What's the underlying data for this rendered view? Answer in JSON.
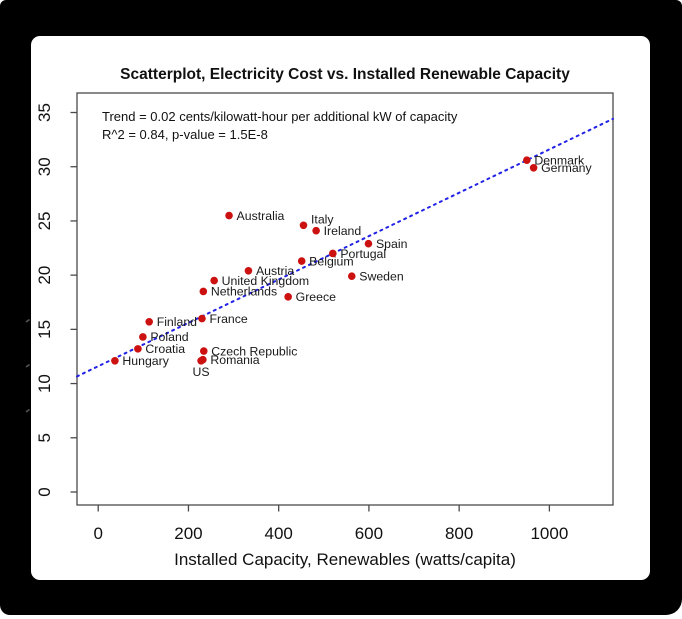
{
  "window": {
    "background_color": "#000000",
    "panel_color": "#ffffff"
  },
  "chart_data": {
    "type": "scatter",
    "title": "Scatterplot, Electricity Cost vs. Installed Renewable Capacity",
    "xlabel": "Installed Capacity, Renewables (watts/capita)",
    "ylabel_visible": false,
    "annotation": {
      "line1": "Trend = 0.02 cents/kilowatt-hour per additional kW of capacity",
      "line2": "R^2 = 0.84, p-value = 1.5E-8"
    },
    "x_ticks": [
      0,
      200,
      400,
      600,
      800,
      1000
    ],
    "y_ticks": [
      0,
      5,
      10,
      15,
      20,
      25,
      30,
      35
    ],
    "xlim": [
      -47,
      1141
    ],
    "ylim": [
      -1.2,
      36.8
    ],
    "grid": false,
    "point_color": "#cc1111",
    "label_color": "#1a1a1a",
    "frame_color": "#4a4a4a",
    "trend_line": {
      "slope": 0.02,
      "intercept": 11.6,
      "color": "#2222e6",
      "style": "dotted",
      "x_start": -47,
      "x_end": 1141
    },
    "points": [
      {
        "label": "Denmark",
        "x": 950,
        "y": 30.6
      },
      {
        "label": "Germany",
        "x": 965,
        "y": 29.9
      },
      {
        "label": "Australia",
        "x": 290,
        "y": 25.5
      },
      {
        "label": "Italy",
        "x": 455,
        "y": 24.6,
        "dy": -6
      },
      {
        "label": "Ireland",
        "x": 483,
        "y": 24.1
      },
      {
        "label": "Spain",
        "x": 599,
        "y": 22.9
      },
      {
        "label": "Portugal",
        "x": 520,
        "y": 22.0
      },
      {
        "label": "Belgium",
        "x": 451,
        "y": 21.3
      },
      {
        "label": "Austria",
        "x": 333,
        "y": 20.4
      },
      {
        "label": "Sweden",
        "x": 562,
        "y": 19.9
      },
      {
        "label": "United Kingdom",
        "x": 257,
        "y": 19.5
      },
      {
        "label": "Netherlands",
        "x": 233,
        "y": 18.5
      },
      {
        "label": "Greece",
        "x": 421,
        "y": 18.0
      },
      {
        "label": "France",
        "x": 230,
        "y": 16.0
      },
      {
        "label": "Finland",
        "x": 113,
        "y": 15.7
      },
      {
        "label": "Poland",
        "x": 99,
        "y": 14.3
      },
      {
        "label": "Croatia",
        "x": 88,
        "y": 13.2
      },
      {
        "label": "Czech Republic",
        "x": 234,
        "y": 13.0
      },
      {
        "label": "Romania",
        "x": 232,
        "y": 12.2
      },
      {
        "label": "Hungary",
        "x": 37,
        "y": 12.1
      },
      {
        "label": "US",
        "x": 228,
        "y": 12.1,
        "label_pos": "below"
      }
    ],
    "y_axis_label_clipped_marks": [
      322,
      367,
      412
    ]
  }
}
